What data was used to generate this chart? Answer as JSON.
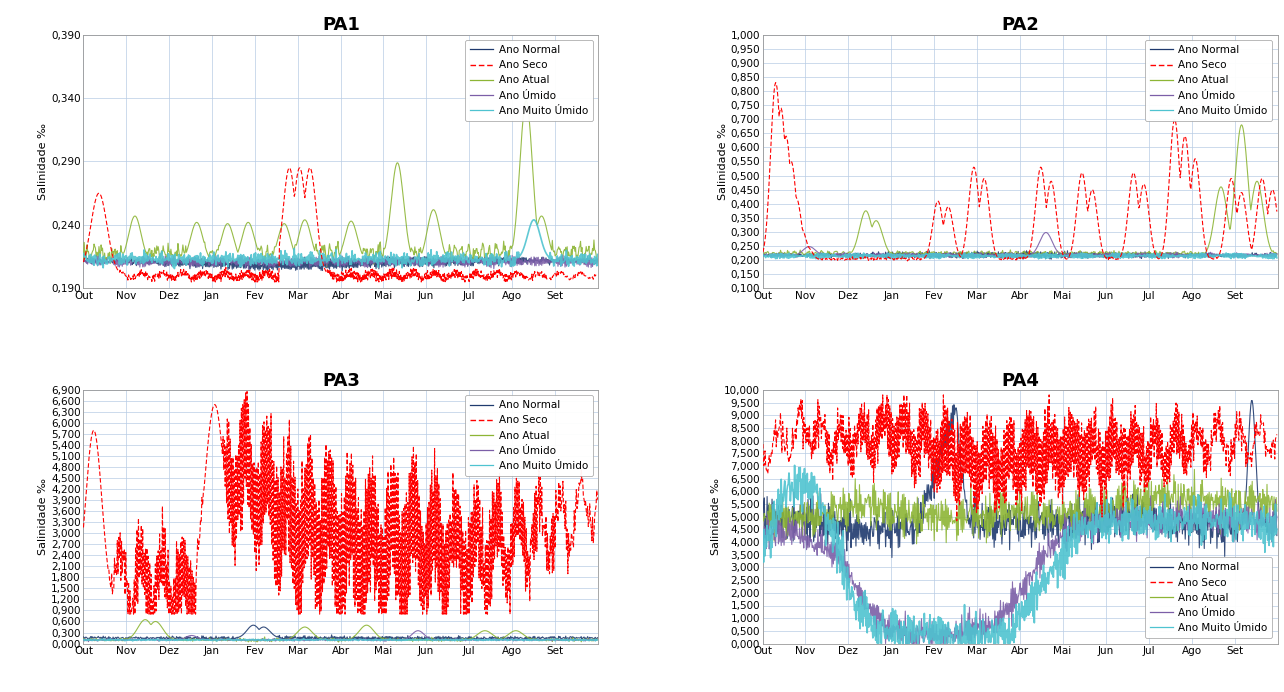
{
  "panels": [
    "PA1",
    "PA2",
    "PA3",
    "PA4"
  ],
  "x_labels": [
    "Out",
    "Nov",
    "Dez",
    "Jan",
    "Fev",
    "Mar",
    "Abr",
    "Mai",
    "Jun",
    "Jul",
    "Ago",
    "Set"
  ],
  "n_points": 730,
  "ylabel": "Salinidade ‰",
  "legend_entries": [
    "Ano Normal",
    "Ano Seco",
    "Ano Atual",
    "Ano Úmido",
    "Ano Muito Úmido"
  ],
  "line_colors": [
    "#1F3A6E",
    "#FF0000",
    "#8DB535",
    "#7B5EA7",
    "#4FC3D0"
  ],
  "pa1": {
    "title": "PA1",
    "ylim": [
      0.19,
      0.39
    ],
    "yticks": [
      0.19,
      0.24,
      0.29,
      0.34,
      0.39
    ],
    "ytick_labels": [
      "0,190",
      "0,240",
      "0,290",
      "0,340",
      "0,390"
    ]
  },
  "pa2": {
    "title": "PA2",
    "ylim": [
      0.1,
      1.0
    ],
    "yticks": [
      0.1,
      0.15,
      0.2,
      0.25,
      0.3,
      0.35,
      0.4,
      0.45,
      0.5,
      0.55,
      0.6,
      0.65,
      0.7,
      0.75,
      0.8,
      0.85,
      0.9,
      0.95,
      1.0
    ],
    "ytick_labels": [
      "0,100",
      "0,150",
      "0,200",
      "0,250",
      "0,300",
      "0,350",
      "0,400",
      "0,450",
      "0,500",
      "0,550",
      "0,600",
      "0,650",
      "0,700",
      "0,750",
      "0,800",
      "0,850",
      "0,900",
      "0,950",
      "1,000"
    ]
  },
  "pa3": {
    "title": "PA3",
    "ylim": [
      0.0,
      6.9
    ],
    "yticks": [
      0.0,
      0.3,
      0.6,
      0.9,
      1.2,
      1.5,
      1.8,
      2.1,
      2.4,
      2.7,
      3.0,
      3.3,
      3.6,
      3.9,
      4.2,
      4.5,
      4.8,
      5.1,
      5.4,
      5.7,
      6.0,
      6.3,
      6.6,
      6.9
    ],
    "ytick_labels": [
      "0,000",
      "0,300",
      "0,600",
      "0,900",
      "1,200",
      "1,500",
      "1,800",
      "2,100",
      "2,400",
      "2,700",
      "3,000",
      "3,300",
      "3,600",
      "3,900",
      "4,200",
      "4,500",
      "4,800",
      "5,100",
      "5,400",
      "5,700",
      "6,000",
      "6,300",
      "6,600",
      "6,900"
    ]
  },
  "pa4": {
    "title": "PA4",
    "ylim": [
      0.0,
      10.0
    ],
    "yticks": [
      0.0,
      0.5,
      1.0,
      1.5,
      2.0,
      2.5,
      3.0,
      3.5,
      4.0,
      4.5,
      5.0,
      5.5,
      6.0,
      6.5,
      7.0,
      7.5,
      8.0,
      8.5,
      9.0,
      9.5,
      10.0
    ],
    "ytick_labels": [
      "0,000",
      "0,500",
      "1,000",
      "1,500",
      "2,000",
      "2,500",
      "3,000",
      "3,500",
      "4,000",
      "4,500",
      "5,000",
      "5,500",
      "6,000",
      "6,500",
      "7,000",
      "7,500",
      "8,000",
      "8,500",
      "9,000",
      "9,500",
      "10,000"
    ]
  },
  "background_color": "#FFFFFF",
  "grid_color": "#B8CCE4",
  "title_fontsize": 13,
  "label_fontsize": 8,
  "tick_fontsize": 7.5,
  "legend_fontsize": 7.5
}
